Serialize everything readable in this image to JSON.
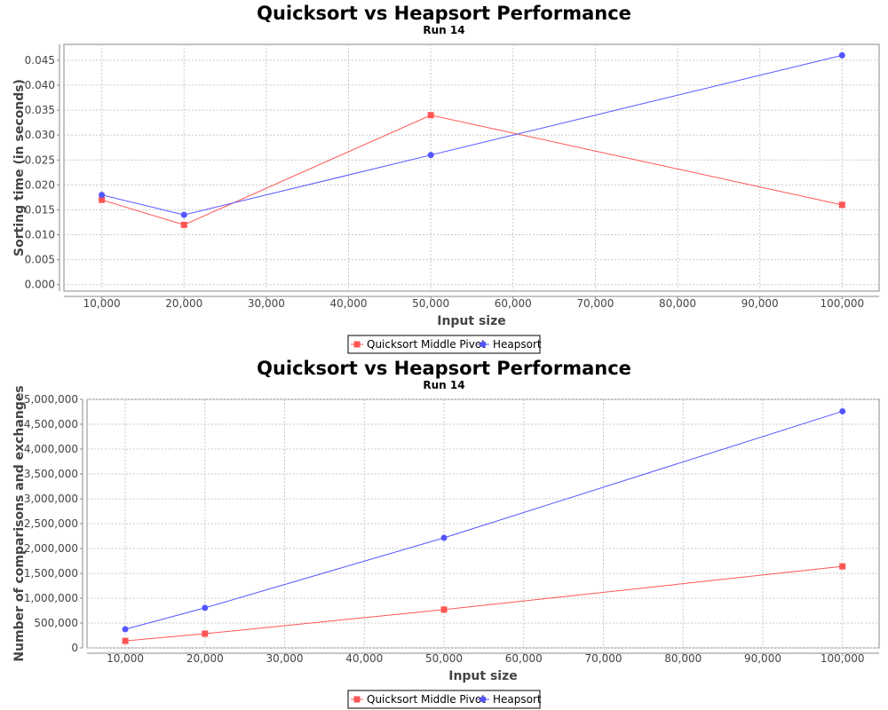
{
  "chart_data": [
    {
      "type": "line",
      "title": "Quicksort vs Heapsort Performance",
      "subtitle": "Run 14",
      "xlabel": "Input size",
      "ylabel": "Sorting time (in seconds)",
      "xlim": [
        5400,
        104500
      ],
      "ylim": [
        -0.0013,
        0.0482
      ],
      "xticks": [
        10000,
        20000,
        30000,
        40000,
        50000,
        60000,
        70000,
        80000,
        90000,
        100000
      ],
      "xtick_labels": [
        "10,000",
        "20,000",
        "30,000",
        "40,000",
        "50,000",
        "60,000",
        "70,000",
        "80,000",
        "90,000",
        "100,000"
      ],
      "yticks": [
        0,
        0.005,
        0.01,
        0.015,
        0.02,
        0.025,
        0.03,
        0.035,
        0.04,
        0.045
      ],
      "ytick_labels": [
        "0.000",
        "0.005",
        "0.010",
        "0.015",
        "0.020",
        "0.025",
        "0.030",
        "0.035",
        "0.040",
        "0.045"
      ],
      "grid": true,
      "legend_position": "bottom-center",
      "x": [
        10000,
        20000,
        50000,
        100000
      ],
      "series": [
        {
          "name": "Quicksort Middle Pivot",
          "marker": "square",
          "color": "#ff5555",
          "values": [
            0.017,
            0.012,
            0.034,
            0.016
          ]
        },
        {
          "name": "Heapsort",
          "marker": "circle",
          "color": "#5555ff",
          "values": [
            0.018,
            0.014,
            0.026,
            0.046
          ]
        }
      ]
    },
    {
      "type": "line",
      "title": "Quicksort vs Heapsort Performance",
      "subtitle": "Run 14",
      "xlabel": "Input size",
      "ylabel": "Number of comparisons and exchanges",
      "xlim": [
        5200,
        104600
      ],
      "ylim": [
        0,
        5000000
      ],
      "xticks": [
        10000,
        20000,
        30000,
        40000,
        50000,
        60000,
        70000,
        80000,
        90000,
        100000
      ],
      "xtick_labels": [
        "10,000",
        "20,000",
        "30,000",
        "40,000",
        "50,000",
        "60,000",
        "70,000",
        "80,000",
        "90,000",
        "100,000"
      ],
      "yticks": [
        0,
        500000,
        1000000,
        1500000,
        2000000,
        2500000,
        3000000,
        3500000,
        4000000,
        4500000,
        5000000
      ],
      "ytick_labels": [
        "0",
        "500,000",
        "1,000,000",
        "1,500,000",
        "2,000,000",
        "2,500,000",
        "3,000,000",
        "3,500,000",
        "4,000,000",
        "4,500,000",
        "5,000,000"
      ],
      "grid": true,
      "legend_position": "bottom-center",
      "x": [
        10000,
        20000,
        50000,
        100000
      ],
      "series": [
        {
          "name": "Quicksort Middle Pivot",
          "marker": "square",
          "color": "#ff5555",
          "values": [
            140000,
            285000,
            770000,
            1640000
          ]
        },
        {
          "name": "Heapsort",
          "marker": "circle",
          "color": "#5555ff",
          "values": [
            375000,
            805000,
            2215000,
            4760000
          ]
        }
      ]
    }
  ]
}
